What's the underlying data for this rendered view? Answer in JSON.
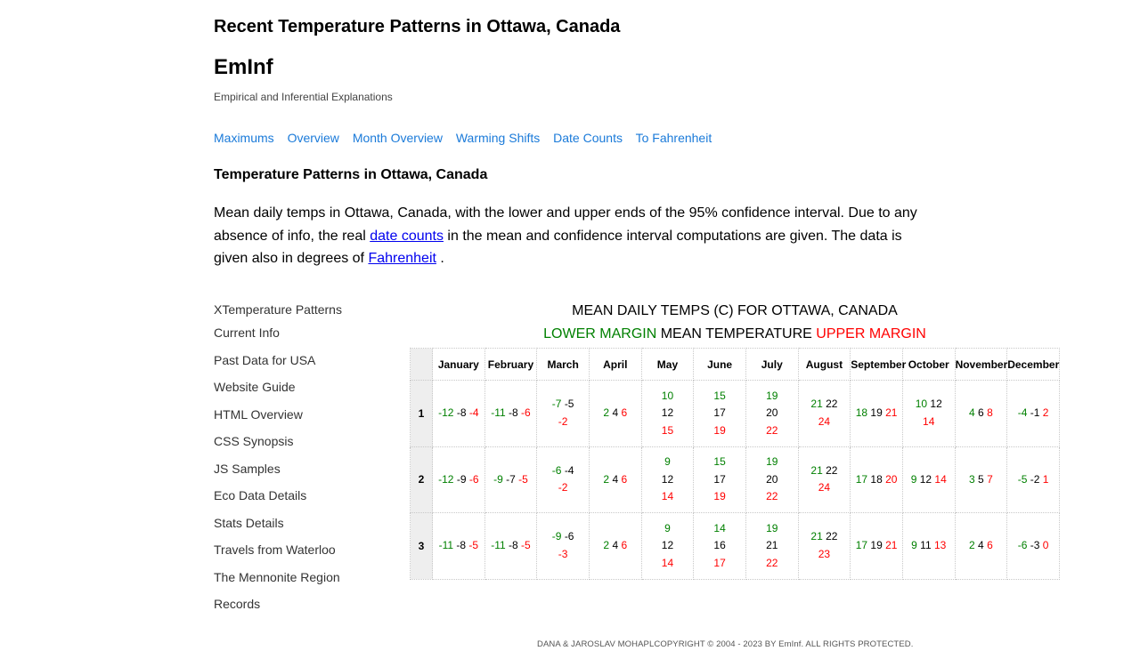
{
  "page": {
    "title": "Recent Temperature Patterns in Ottawa, Canada",
    "brand": "EmInf",
    "tagline": "Empirical and Inferential Explanations"
  },
  "nav": {
    "links": [
      "Maximums",
      "Overview",
      "Month Overview",
      "Warming Shifts",
      "Date Counts",
      "To Fahrenheit"
    ]
  },
  "section": {
    "title": "Temperature Patterns in Ottawa, Canada",
    "intro_before": "Mean daily temps in Ottawa, Canada, with the lower and upper ends of the 95% confidence interval. Due to any absence of info, the real ",
    "intro_link1": "date counts",
    "intro_middle": " in the mean and confidence interval computations are given. The data is given also in degrees of ",
    "intro_link2": "Fahrenheit",
    "intro_after": " ."
  },
  "sidebar": {
    "items": [
      "XTemperature Patterns",
      "Current Info",
      "Past Data for USA",
      "Website Guide",
      "HTML Overview",
      "CSS Synopsis",
      "JS Samples",
      "Eco Data Details",
      "Stats Details",
      "Travels from Waterloo",
      "The Mennonite Region",
      "Records"
    ]
  },
  "table": {
    "title": "MEAN DAILY TEMPS (C) FOR OTTAWA, CANADA",
    "legend_lower": "LOWER MARGIN",
    "legend_mean": "MEAN TEMPERATURE",
    "legend_upper": "UPPER MARGIN",
    "months": [
      "January",
      "February",
      "March",
      "April",
      "May",
      "June",
      "July",
      "August",
      "September",
      "October",
      "November",
      "December"
    ],
    "rows": [
      {
        "day": "1",
        "cells": [
          {
            "lo": "-12",
            "mean": "-8",
            "hi": "-4",
            "layout": "1"
          },
          {
            "lo": "-11",
            "mean": "-8",
            "hi": "-6",
            "layout": "1"
          },
          {
            "lo": "-7",
            "mean": "-5",
            "hi": "-2",
            "layout": "2"
          },
          {
            "lo": "2",
            "mean": "4",
            "hi": "6",
            "layout": "1"
          },
          {
            "lo": "10",
            "mean": "12",
            "hi": "15",
            "layout": "3"
          },
          {
            "lo": "15",
            "mean": "17",
            "hi": "19",
            "layout": "3"
          },
          {
            "lo": "19",
            "mean": "20",
            "hi": "22",
            "layout": "3"
          },
          {
            "lo": "21",
            "mean": "22",
            "hi": "24",
            "layout": "2"
          },
          {
            "lo": "18",
            "mean": "19",
            "hi": "21",
            "layout": "1"
          },
          {
            "lo": "10",
            "mean": "12",
            "hi": "14",
            "layout": "2"
          },
          {
            "lo": "4",
            "mean": "6",
            "hi": "8",
            "layout": "1"
          },
          {
            "lo": "-4",
            "mean": "-1",
            "hi": "2",
            "layout": "1"
          }
        ]
      },
      {
        "day": "2",
        "cells": [
          {
            "lo": "-12",
            "mean": "-9",
            "hi": "-6",
            "layout": "1"
          },
          {
            "lo": "-9",
            "mean": "-7",
            "hi": "-5",
            "layout": "1"
          },
          {
            "lo": "-6",
            "mean": "-4",
            "hi": "-2",
            "layout": "2"
          },
          {
            "lo": "2",
            "mean": "4",
            "hi": "6",
            "layout": "1"
          },
          {
            "lo": "9",
            "mean": "12",
            "hi": "14",
            "layout": "3"
          },
          {
            "lo": "15",
            "mean": "17",
            "hi": "19",
            "layout": "3"
          },
          {
            "lo": "19",
            "mean": "20",
            "hi": "22",
            "layout": "3"
          },
          {
            "lo": "21",
            "mean": "22",
            "hi": "24",
            "layout": "2"
          },
          {
            "lo": "17",
            "mean": "18",
            "hi": "20",
            "layout": "1"
          },
          {
            "lo": "9",
            "mean": "12",
            "hi": "14",
            "layout": "1"
          },
          {
            "lo": "3",
            "mean": "5",
            "hi": "7",
            "layout": "1"
          },
          {
            "lo": "-5",
            "mean": "-2",
            "hi": "1",
            "layout": "1"
          }
        ]
      },
      {
        "day": "3",
        "cells": [
          {
            "lo": "-11",
            "mean": "-8",
            "hi": "-5",
            "layout": "1"
          },
          {
            "lo": "-11",
            "mean": "-8",
            "hi": "-5",
            "layout": "1"
          },
          {
            "lo": "-9",
            "mean": "-6",
            "hi": "-3",
            "layout": "2"
          },
          {
            "lo": "2",
            "mean": "4",
            "hi": "6",
            "layout": "1"
          },
          {
            "lo": "9",
            "mean": "12",
            "hi": "14",
            "layout": "3"
          },
          {
            "lo": "14",
            "mean": "16",
            "hi": "17",
            "layout": "3"
          },
          {
            "lo": "19",
            "mean": "21",
            "hi": "22",
            "layout": "3"
          },
          {
            "lo": "21",
            "mean": "22",
            "hi": "23",
            "layout": "2"
          },
          {
            "lo": "17",
            "mean": "19",
            "hi": "21",
            "layout": "1"
          },
          {
            "lo": "9",
            "mean": "11",
            "hi": "13",
            "layout": "1"
          },
          {
            "lo": "2",
            "mean": "4",
            "hi": "6",
            "layout": "1"
          },
          {
            "lo": "-6",
            "mean": "-3",
            "hi": "0",
            "layout": "1"
          }
        ]
      }
    ]
  },
  "footer": {
    "text": "DANA & JAROSLAV MOHAPLCOPYRIGHT © 2004 - 2023 BY EmInf. ALL RIGHTS PROTECTED."
  },
  "colors": {
    "link": "#1a7ad9",
    "lower": "#008000",
    "upper": "#ff0000",
    "header_bg": "#eeeeee"
  }
}
